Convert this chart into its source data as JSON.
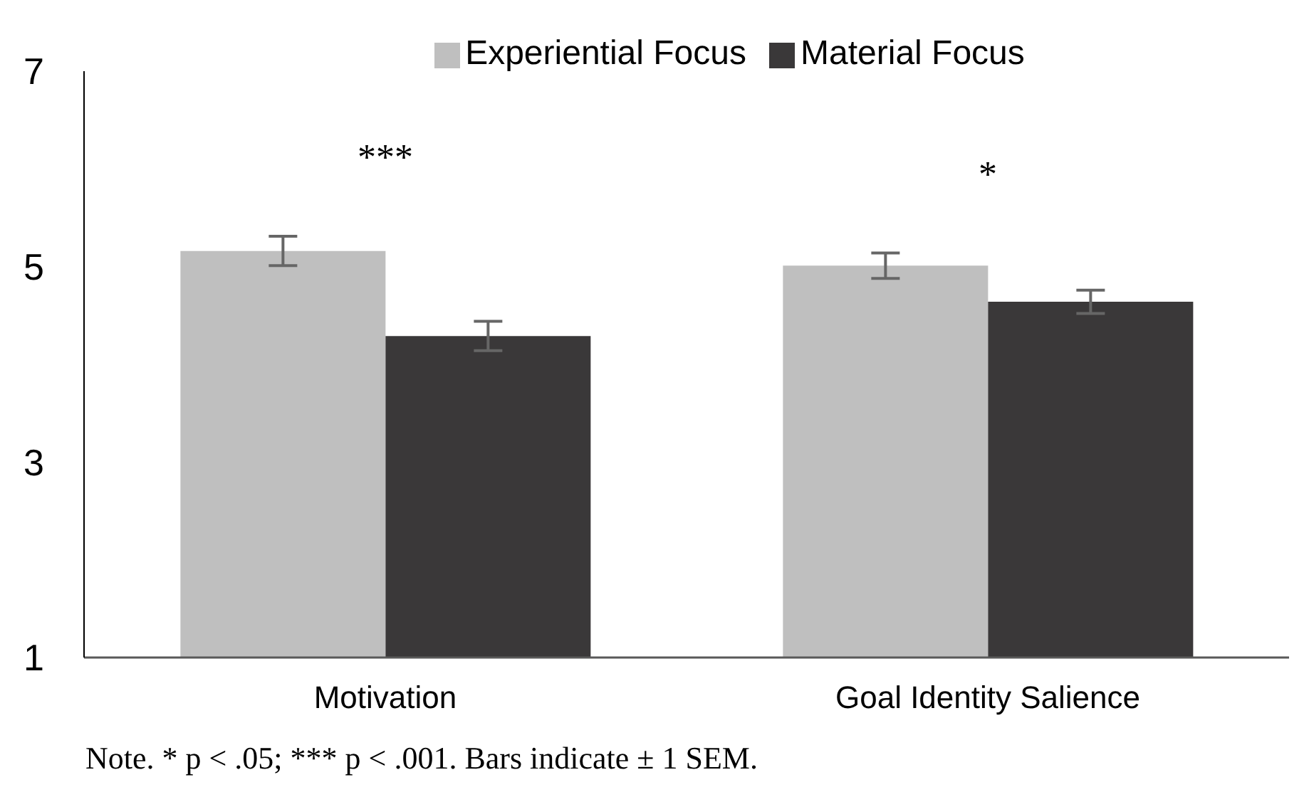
{
  "chart_data": {
    "type": "bar",
    "categories": [
      "Motivation",
      "Goal Identity Salience"
    ],
    "series": [
      {
        "name": "Experiential Focus",
        "color": "#bfbfbf",
        "values": [
          5.16,
          5.01
        ],
        "errors": [
          0.15,
          0.13
        ]
      },
      {
        "name": "Material Focus",
        "color": "#3a3839",
        "values": [
          4.29,
          4.64
        ],
        "errors": [
          0.15,
          0.12
        ]
      }
    ],
    "ylim": [
      1,
      7
    ],
    "yticks": [
      1,
      3,
      5,
      7
    ],
    "grid": false,
    "legend": "top",
    "annotations": [
      "***",
      "*",
      "Note. * p < .05; *** p < .001. Bars indicate ± 1 SEM."
    ]
  }
}
